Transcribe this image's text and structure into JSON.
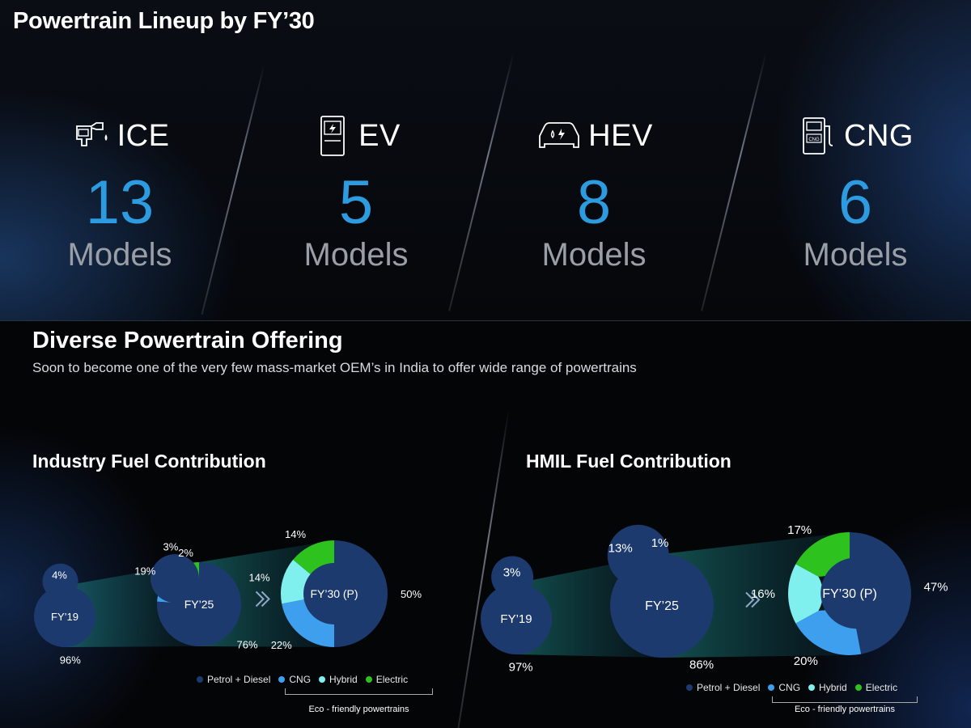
{
  "header": {
    "title": "Powertrain Lineup by FY’30"
  },
  "powertrains": [
    {
      "label": "ICE",
      "count": "13",
      "unit": "Models",
      "icon": "fuel-nozzle-icon"
    },
    {
      "label": "EV",
      "count": "5",
      "unit": "Models",
      "icon": "ev-charger-icon"
    },
    {
      "label": "HEV",
      "count": "8",
      "unit": "Models",
      "icon": "hybrid-car-icon"
    },
    {
      "label": "CNG",
      "count": "6",
      "unit": "Models",
      "icon": "cng-pump-icon"
    }
  ],
  "section": {
    "title": "Diverse Powertrain Offering",
    "subtitle": "Soon to become one of the very few mass-market OEM’s in India to offer wide range of powertrains"
  },
  "colors": {
    "petrol_diesel": "#1d3a6e",
    "cng": "#3f9fef",
    "hybrid": "#7ff0ee",
    "electric": "#2ec21f",
    "accent": "#2c9be0"
  },
  "legend": {
    "items": [
      "Petrol + Diesel",
      "CNG",
      "Hybrid",
      "Electric"
    ],
    "eco_label": "Eco - friendly powertrains"
  },
  "chart_data": [
    {
      "type": "donut",
      "title": "Industry Fuel Contribution",
      "series_names": [
        "Petrol + Diesel",
        "CNG",
        "Hybrid",
        "Electric"
      ],
      "charts": [
        {
          "label": "FY’19",
          "values": [
            96,
            4,
            0,
            0
          ],
          "labels": [
            "96%",
            "4%",
            "",
            ""
          ]
        },
        {
          "label": "FY’25",
          "values": [
            76,
            19,
            2,
            3
          ],
          "labels": [
            "76%",
            "19%",
            "2%",
            "3%"
          ]
        },
        {
          "label": "FY’30 (P)",
          "values": [
            50,
            22,
            14,
            14
          ],
          "labels": [
            "50%",
            "22%",
            "14%",
            "14%"
          ]
        }
      ]
    },
    {
      "type": "donut",
      "title": "HMIL Fuel Contribution",
      "series_names": [
        "Petrol + Diesel",
        "CNG",
        "Hybrid",
        "Electric"
      ],
      "charts": [
        {
          "label": "FY’19",
          "values": [
            97,
            3,
            0,
            0
          ],
          "labels": [
            "97%",
            "3%",
            "",
            ""
          ]
        },
        {
          "label": "FY’25",
          "values": [
            86,
            13,
            0,
            1
          ],
          "labels": [
            "86%",
            "13%",
            "",
            "1%"
          ]
        },
        {
          "label": "FY’30 (P)",
          "values": [
            47,
            20,
            16,
            17
          ],
          "labels": [
            "47%",
            "20%",
            "16%",
            "17%"
          ]
        }
      ]
    }
  ]
}
